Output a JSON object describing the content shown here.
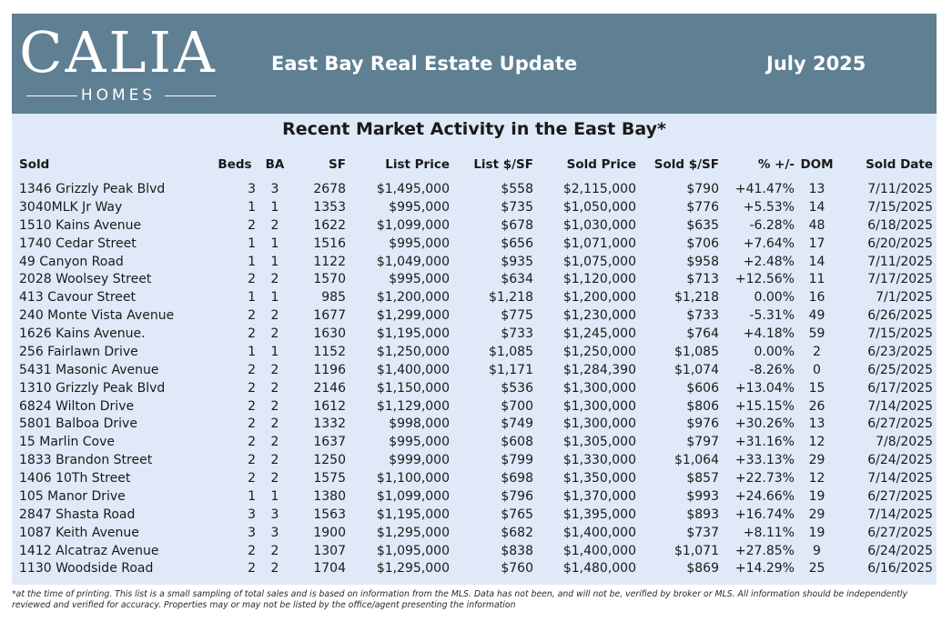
{
  "header": {
    "logo_main": "CALIA",
    "logo_sub": "HOMES",
    "title": "East Bay Real Estate Update",
    "date": "July 2025"
  },
  "panel": {
    "title": "Recent Market Activity in the East Bay*"
  },
  "table": {
    "columns": [
      "Sold",
      "Beds",
      "BA",
      "SF",
      "List Price",
      "List $/SF",
      "Sold Price",
      "Sold $/SF",
      "% +/-",
      "DOM",
      "Sold Date"
    ],
    "rows": [
      [
        "1346 Grizzly Peak Blvd",
        "3",
        "3",
        "2678",
        "$1,495,000",
        "$558",
        "$2,115,000",
        "$790",
        "+41.47%",
        "13",
        "7/11/2025"
      ],
      [
        "3040MLK Jr Way",
        "1",
        "1",
        "1353",
        "$995,000",
        "$735",
        "$1,050,000",
        "$776",
        "+5.53%",
        "14",
        "7/15/2025"
      ],
      [
        "1510 Kains Avenue",
        "2",
        "2",
        "1622",
        "$1,099,000",
        "$678",
        "$1,030,000",
        "$635",
        "-6.28%",
        "48",
        "6/18/2025"
      ],
      [
        "1740 Cedar Street",
        "1",
        "1",
        "1516",
        "$995,000",
        "$656",
        "$1,071,000",
        "$706",
        "+7.64%",
        "17",
        "6/20/2025"
      ],
      [
        "49 Canyon Road",
        "1",
        "1",
        "1122",
        "$1,049,000",
        "$935",
        "$1,075,000",
        "$958",
        "+2.48%",
        "14",
        "7/11/2025"
      ],
      [
        "2028 Woolsey Street",
        "2",
        "2",
        "1570",
        "$995,000",
        "$634",
        "$1,120,000",
        "$713",
        "+12.56%",
        "11",
        "7/17/2025"
      ],
      [
        "413 Cavour Street",
        "1",
        "1",
        "985",
        "$1,200,000",
        "$1,218",
        "$1,200,000",
        "$1,218",
        "0.00%",
        "16",
        "7/1/2025"
      ],
      [
        "240 Monte Vista Avenue",
        "2",
        "2",
        "1677",
        "$1,299,000",
        "$775",
        "$1,230,000",
        "$733",
        "-5.31%",
        "49",
        "6/26/2025"
      ],
      [
        "1626 Kains Avenue.",
        "2",
        "2",
        "1630",
        "$1,195,000",
        "$733",
        "$1,245,000",
        "$764",
        "+4.18%",
        "59",
        "7/15/2025"
      ],
      [
        "256 Fairlawn Drive",
        "1",
        "1",
        "1152",
        "$1,250,000",
        "$1,085",
        "$1,250,000",
        "$1,085",
        "0.00%",
        "2",
        "6/23/2025"
      ],
      [
        "5431 Masonic Avenue",
        "2",
        "2",
        "1196",
        "$1,400,000",
        "$1,171",
        "$1,284,390",
        "$1,074",
        "-8.26%",
        "0",
        "6/25/2025"
      ],
      [
        "1310 Grizzly Peak Blvd",
        "2",
        "2",
        "2146",
        "$1,150,000",
        "$536",
        "$1,300,000",
        "$606",
        "+13.04%",
        "15",
        "6/17/2025"
      ],
      [
        "6824 Wilton Drive",
        "2",
        "2",
        "1612",
        "$1,129,000",
        "$700",
        "$1,300,000",
        "$806",
        "+15.15%",
        "26",
        "7/14/2025"
      ],
      [
        "5801 Balboa Drive",
        "2",
        "2",
        "1332",
        "$998,000",
        "$749",
        "$1,300,000",
        "$976",
        "+30.26%",
        "13",
        "6/27/2025"
      ],
      [
        "15 Marlin Cove",
        "2",
        "2",
        "1637",
        "$995,000",
        "$608",
        "$1,305,000",
        "$797",
        "+31.16%",
        "12",
        "7/8/2025"
      ],
      [
        "1833 Brandon Street",
        "2",
        "2",
        "1250",
        "$999,000",
        "$799",
        "$1,330,000",
        "$1,064",
        "+33.13%",
        "29",
        "6/24/2025"
      ],
      [
        "1406 10Th Street",
        "2",
        "2",
        "1575",
        "$1,100,000",
        "$698",
        "$1,350,000",
        "$857",
        "+22.73%",
        "12",
        "7/14/2025"
      ],
      [
        "105 Manor Drive",
        "1",
        "1",
        "1380",
        "$1,099,000",
        "$796",
        "$1,370,000",
        "$993",
        "+24.66%",
        "19",
        "6/27/2025"
      ],
      [
        "2847 Shasta Road",
        "3",
        "3",
        "1563",
        "$1,195,000",
        "$765",
        "$1,395,000",
        "$893",
        "+16.74%",
        "29",
        "7/14/2025"
      ],
      [
        "1087 Keith Avenue",
        "3",
        "3",
        "1900",
        "$1,295,000",
        "$682",
        "$1,400,000",
        "$737",
        "+8.11%",
        "19",
        "6/27/2025"
      ],
      [
        "1412 Alcatraz Avenue",
        "2",
        "2",
        "1307",
        "$1,095,000",
        "$838",
        "$1,400,000",
        "$1,071",
        "+27.85%",
        "9",
        "6/24/2025"
      ],
      [
        "1130 Woodside Road",
        "2",
        "2",
        "1704",
        "$1,295,000",
        "$760",
        "$1,480,000",
        "$869",
        "+14.29%",
        "25",
        "6/16/2025"
      ]
    ]
  },
  "footnote": "*at the time of printing. This list is a small sampling of total sales and is based on information from the MLS. Data has not been, and will not be, verified by broker or MLS. All information should be independently reviewed and verified for accuracy. Properties may or may not be listed by the office/agent presenting the information",
  "colors": {
    "header_bg": "#5f7f92",
    "panel_bg": "#dfe9f7",
    "text": "#1a1a1a"
  }
}
